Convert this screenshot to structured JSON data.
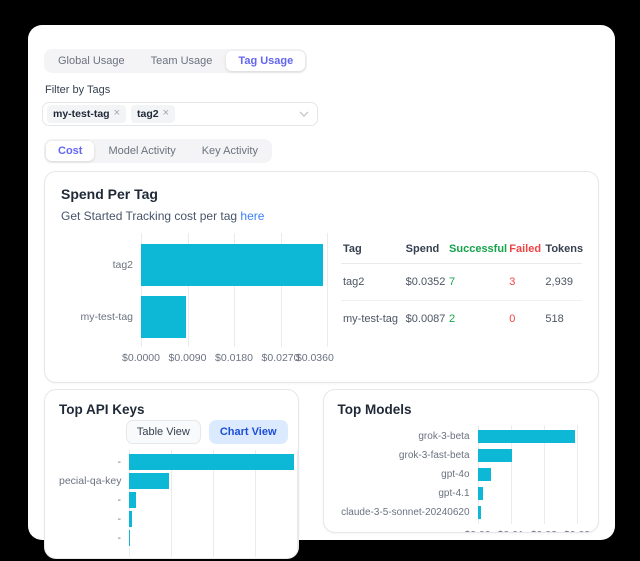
{
  "colors": {
    "page_background": "#000000",
    "panel_background": "#ffffff",
    "accent_indigo": "#6366f1",
    "bar_cyan": "#0db7d6",
    "link_blue": "#3b82f6",
    "success_green": "#16a34a",
    "failed_red": "#ef4444",
    "chart_view_button_bg": "#dbeafe",
    "chart_view_button_text": "#1d4ed8"
  },
  "icons": {
    "remove_tag": "×",
    "dropdown_chevron": "∨"
  },
  "usage_tabs": {
    "items": [
      {
        "label": "Global Usage",
        "active": false
      },
      {
        "label": "Team Usage",
        "active": false
      },
      {
        "label": "Tag Usage",
        "active": true
      }
    ]
  },
  "filter": {
    "label": "Filter by Tags",
    "selected_tags": [
      "my-test-tag",
      "tag2"
    ]
  },
  "view_tabs": {
    "items": [
      {
        "label": "Cost",
        "active": true
      },
      {
        "label": "Model Activity",
        "active": false
      },
      {
        "label": "Key Activity",
        "active": false
      }
    ]
  },
  "spend_card": {
    "title": "Spend Per Tag",
    "subtitle_prefix": "Get Started Tracking cost per tag ",
    "subtitle_link": "here",
    "table": {
      "headers": {
        "tag": "Tag",
        "spend": "Spend",
        "successful": "Successful",
        "failed": "Failed",
        "tokens": "Tokens"
      },
      "rows": [
        {
          "tag": "tag2",
          "spend": "$0.0352",
          "successful": "7",
          "failed": "3",
          "tokens": "2,939"
        },
        {
          "tag": "my-test-tag",
          "spend": "$0.0087",
          "successful": "2",
          "failed": "0",
          "tokens": "518"
        }
      ]
    }
  },
  "keys_card": {
    "title": "Top API Keys",
    "buttons": [
      {
        "label": "Table View",
        "active": false
      },
      {
        "label": "Chart View",
        "active": true
      }
    ]
  },
  "models_card": {
    "title": "Top Models"
  },
  "chart_data": [
    {
      "id": "spend_per_tag",
      "type": "bar",
      "orientation": "horizontal",
      "title": "Spend Per Tag",
      "categories": [
        "tag2",
        "my-test-tag"
      ],
      "values": [
        0.0352,
        0.0087
      ],
      "xlim": [
        0,
        0.036
      ],
      "ticks": [
        {
          "label": "$0.0000",
          "value": 0
        },
        {
          "label": "$0.0090",
          "value": 0.009
        },
        {
          "label": "$0.0180",
          "value": 0.018
        },
        {
          "label": "$0.0270",
          "value": 0.027
        },
        {
          "label": "$0.0360",
          "value": 0.036
        }
      ],
      "show_tick_labels": true,
      "grid": true,
      "xlabel": "",
      "ylabel": "",
      "bar_color": "#0db7d6"
    },
    {
      "id": "top_api_keys",
      "type": "bar",
      "orientation": "horizontal",
      "title": "Top API Keys",
      "categories": [
        "-",
        "pecial-qa-key",
        "-",
        "-",
        "-"
      ],
      "values": [
        0.031,
        0.0075,
        0.0014,
        0.0005,
        0.0001
      ],
      "xlim": [
        0,
        0.0315
      ],
      "gridlines_pct": [
        0,
        25,
        50,
        75,
        100
      ],
      "show_tick_labels": false,
      "grid": true,
      "note": "x-axis labels clipped by card edge",
      "bar_color": "#0db7d6"
    },
    {
      "id": "top_models",
      "type": "bar",
      "orientation": "horizontal",
      "title": "Top Models",
      "categories": [
        "grok-3-beta",
        "grok-3-fast-beta",
        "gpt-4o",
        "gpt-4.1",
        "claude-3-5-sonnet-20240620"
      ],
      "values": [
        0.0295,
        0.0105,
        0.004,
        0.0018,
        0.001
      ],
      "xlim": [
        0,
        0.0315
      ],
      "ticks": [
        {
          "label": "$0.00",
          "value": 0
        },
        {
          "label": "$0.01",
          "value": 0.01
        },
        {
          "label": "$0.02",
          "value": 0.02
        },
        {
          "label": "$0.03",
          "value": 0.03
        }
      ],
      "show_tick_labels": true,
      "grid": true,
      "bar_color": "#0db7d6"
    }
  ]
}
